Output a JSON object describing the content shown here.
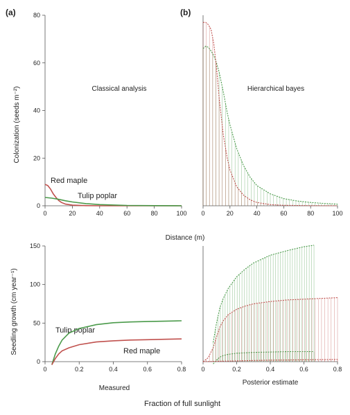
{
  "colors": {
    "red_maple": "#c0504d",
    "tulip_poplar": "#4a9a4a",
    "axis": "#555555"
  },
  "global_labels": {
    "distance_label": "Distance (m)",
    "sunlight_label": "Fraction of full sunlight"
  },
  "chart_data": [
    {
      "panel": "(a)",
      "type": "line",
      "annotation": "Classical analysis",
      "ylabel": "Colonization (seeds m⁻²)",
      "xlabel": "",
      "xlim": [
        0,
        100
      ],
      "ylim": [
        0,
        80
      ],
      "x_ticks": [
        "0",
        "20",
        "40",
        "60",
        "80",
        "100"
      ],
      "y_ticks": [
        "0",
        "20",
        "40",
        "60",
        "80"
      ],
      "series": [
        {
          "name": "Red maple",
          "x": [
            0,
            2,
            4,
            6,
            8,
            10,
            12,
            15,
            20,
            30,
            40,
            60,
            80,
            100
          ],
          "values": [
            9,
            8.5,
            7,
            5,
            3.5,
            2.2,
            1.4,
            0.7,
            0.25,
            0.05,
            0,
            0,
            0,
            0
          ]
        },
        {
          "name": "Tulip poplar",
          "x": [
            0,
            5,
            10,
            15,
            20,
            30,
            40,
            60,
            80,
            100
          ],
          "values": [
            3.5,
            3.2,
            2.7,
            2.1,
            1.6,
            0.9,
            0.5,
            0.15,
            0.05,
            0
          ]
        }
      ]
    },
    {
      "panel": "(b)",
      "type": "line",
      "annotation": "Hierarchical bayes",
      "ylabel": "",
      "xlabel": "",
      "xlim": [
        0,
        100
      ],
      "ylim": [
        0,
        80
      ],
      "x_ticks": [
        "0",
        "20",
        "40",
        "60",
        "80",
        "100"
      ],
      "y_ticks": [],
      "series": [
        {
          "name": "",
          "x": [
            0,
            2,
            4,
            6,
            8,
            10,
            12,
            15,
            18,
            20,
            25,
            30,
            35,
            40,
            50,
            60,
            70,
            80,
            90,
            100
          ],
          "values": [
            66,
            67,
            66.5,
            65,
            63,
            60,
            56,
            48,
            39,
            34,
            24,
            17,
            12,
            8.5,
            5,
            3,
            2,
            1.4,
            1,
            0.7
          ]
        },
        {
          "name": "",
          "x": [
            0,
            2,
            4,
            6,
            8,
            10,
            12,
            15,
            18,
            20,
            25,
            30,
            35,
            40,
            50,
            60,
            80,
            100
          ],
          "values": [
            77,
            77,
            76,
            74,
            68,
            58,
            45,
            30,
            20,
            15,
            8,
            4.5,
            2.5,
            1.4,
            0.5,
            0.2,
            0.05,
            0
          ]
        }
      ]
    },
    {
      "panel": "",
      "type": "line",
      "annotation": "",
      "ylabel": "Seedling growth (cm year⁻¹)",
      "xlabel": "Measured",
      "xlim": [
        0,
        0.8
      ],
      "ylim": [
        0,
        150
      ],
      "x_ticks": [
        "0",
        "0.2",
        "0.4",
        "0.6",
        "0.8"
      ],
      "y_ticks": [
        "0",
        "50",
        "100",
        "150"
      ],
      "series": [
        {
          "name": "Tulip poplar",
          "x": [
            0.04,
            0.06,
            0.08,
            0.1,
            0.14,
            0.2,
            0.3,
            0.4,
            0.5,
            0.6,
            0.7,
            0.8
          ],
          "values": [
            -5,
            10,
            20,
            28,
            37,
            43,
            48,
            50.5,
            51.5,
            52,
            52.5,
            53
          ]
        },
        {
          "name": "Red maple",
          "x": [
            0.04,
            0.06,
            0.08,
            0.1,
            0.14,
            0.2,
            0.3,
            0.4,
            0.5,
            0.6,
            0.7,
            0.8
          ],
          "values": [
            -5,
            4,
            10,
            14,
            18,
            22,
            25.5,
            27,
            28,
            28.5,
            29,
            29.5
          ]
        }
      ]
    },
    {
      "panel": "",
      "type": "line",
      "annotation": "",
      "ylabel": "",
      "xlabel": "Posterior estimate",
      "xlim": [
        0,
        0.8
      ],
      "ylim": [
        0,
        150
      ],
      "x_ticks": [
        "0",
        "0.2",
        "0.4",
        "0.6",
        "0.8"
      ],
      "y_ticks": [],
      "series": [
        {
          "name": "",
          "x": [
            0.06,
            0.08,
            0.1,
            0.12,
            0.15,
            0.2,
            0.25,
            0.3,
            0.4,
            0.5,
            0.6,
            0.66
          ],
          "values": [
            25,
            50,
            70,
            82,
            95,
            110,
            120,
            128,
            138,
            144,
            149,
            151
          ]
        },
        {
          "name": "",
          "x": [
            0.06,
            0.08,
            0.1,
            0.12,
            0.15,
            0.2,
            0.25,
            0.3,
            0.4,
            0.5,
            0.6,
            0.66
          ],
          "values": [
            -3,
            2,
            6,
            8,
            9.5,
            11,
            11.5,
            12,
            12.5,
            13,
            13,
            13
          ]
        },
        {
          "name": "",
          "x": [
            0,
            0.03,
            0.06,
            0.08,
            0.1,
            0.12,
            0.15,
            0.2,
            0.25,
            0.3,
            0.4,
            0.5,
            0.6,
            0.7,
            0.8
          ],
          "values": [
            0,
            5,
            18,
            32,
            45,
            53,
            61,
            68,
            72,
            75,
            78,
            80,
            81,
            82,
            83
          ]
        },
        {
          "name": "",
          "x": [
            0,
            0.1,
            0.2,
            0.3,
            0.4,
            0.5,
            0.6,
            0.7,
            0.8
          ],
          "values": [
            0,
            0.5,
            1,
            1.5,
            2,
            2.2,
            2.5,
            2.7,
            3
          ]
        }
      ]
    }
  ]
}
